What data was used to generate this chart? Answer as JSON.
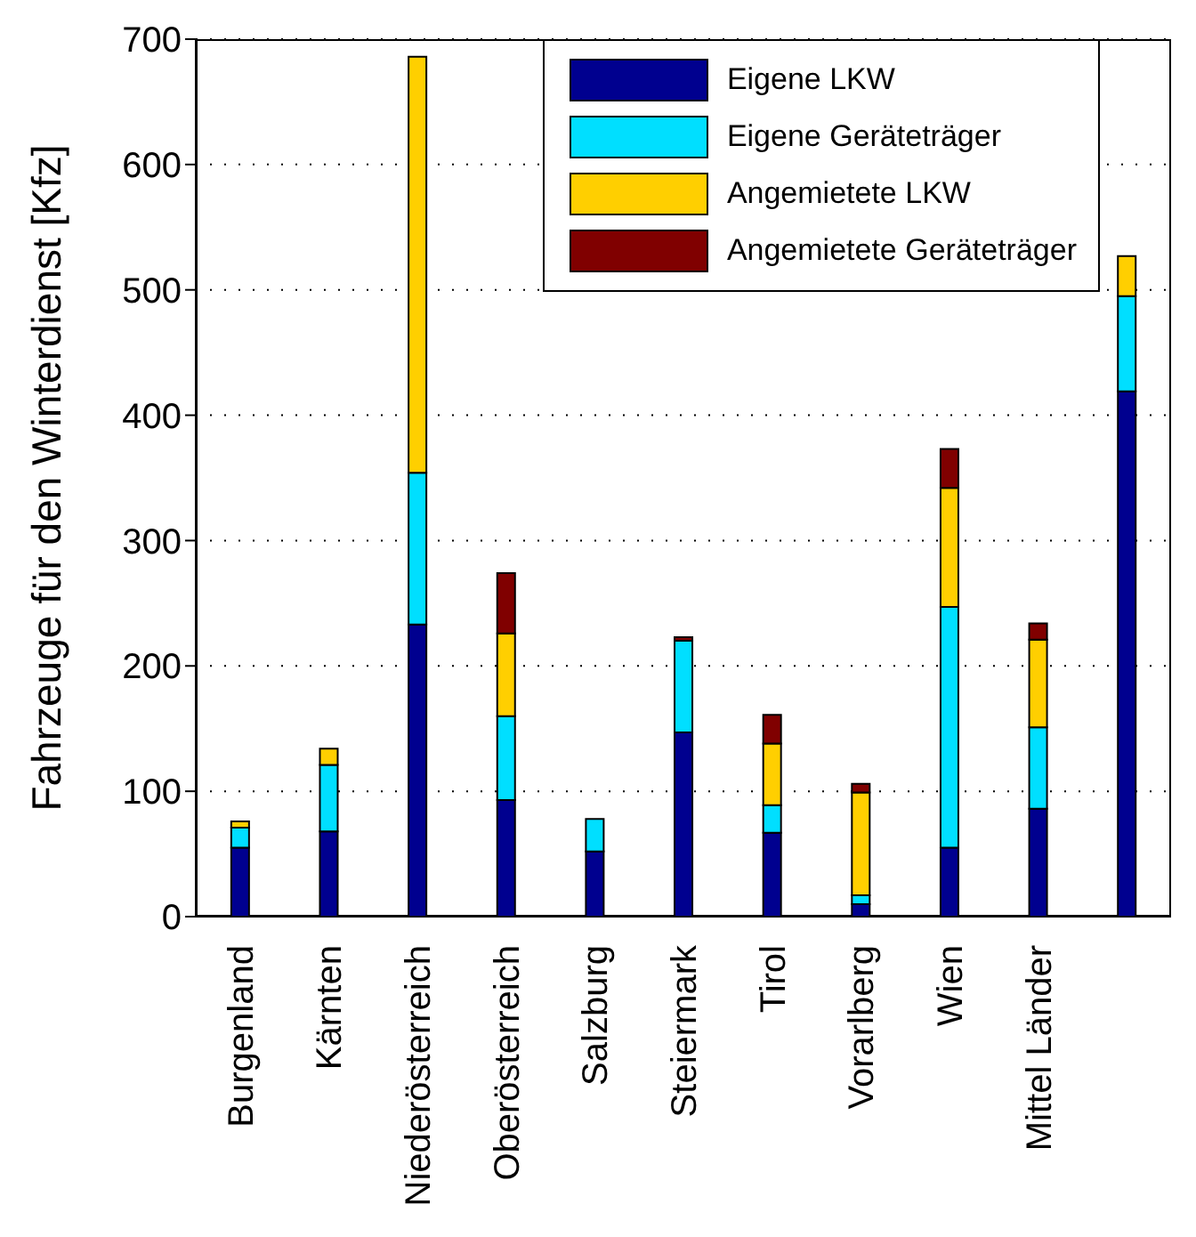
{
  "chart_data": {
    "type": "bar",
    "stacked": true,
    "ylabel": "Fahrzeuge für den Winterdienst [Kfz]",
    "categories": [
      "Burgenland",
      "Kärnten",
      "Niederösterreich",
      "Oberösterreich",
      "Salzburg",
      "Steiermark",
      "Tirol",
      "Vorarlberg",
      "Wien",
      "Mittel Länder",
      null
    ],
    "series": [
      {
        "name": "Eigene LKW",
        "color": "#00008f",
        "values": [
          55,
          68,
          233,
          93,
          52,
          147,
          67,
          10,
          55,
          86,
          419
        ]
      },
      {
        "name": "Eigene Geräteträger",
        "color": "#00dfff",
        "values": [
          16,
          53,
          121,
          67,
          26,
          73,
          22,
          7,
          192,
          65,
          76
        ]
      },
      {
        "name": "Angemietete LKW",
        "color": "#ffcf00",
        "values": [
          5,
          13,
          332,
          66,
          0,
          0,
          49,
          82,
          95,
          70,
          32
        ]
      },
      {
        "name": "Angemietete Geräteträger",
        "color": "#800000",
        "values": [
          0,
          0,
          0,
          48,
          0,
          3,
          23,
          7,
          31,
          13,
          0
        ]
      }
    ],
    "ylim": [
      0,
      700
    ],
    "yticks": [
      0,
      100,
      200,
      300,
      400,
      500,
      600,
      700
    ],
    "grid": "y",
    "legend": "top right"
  }
}
